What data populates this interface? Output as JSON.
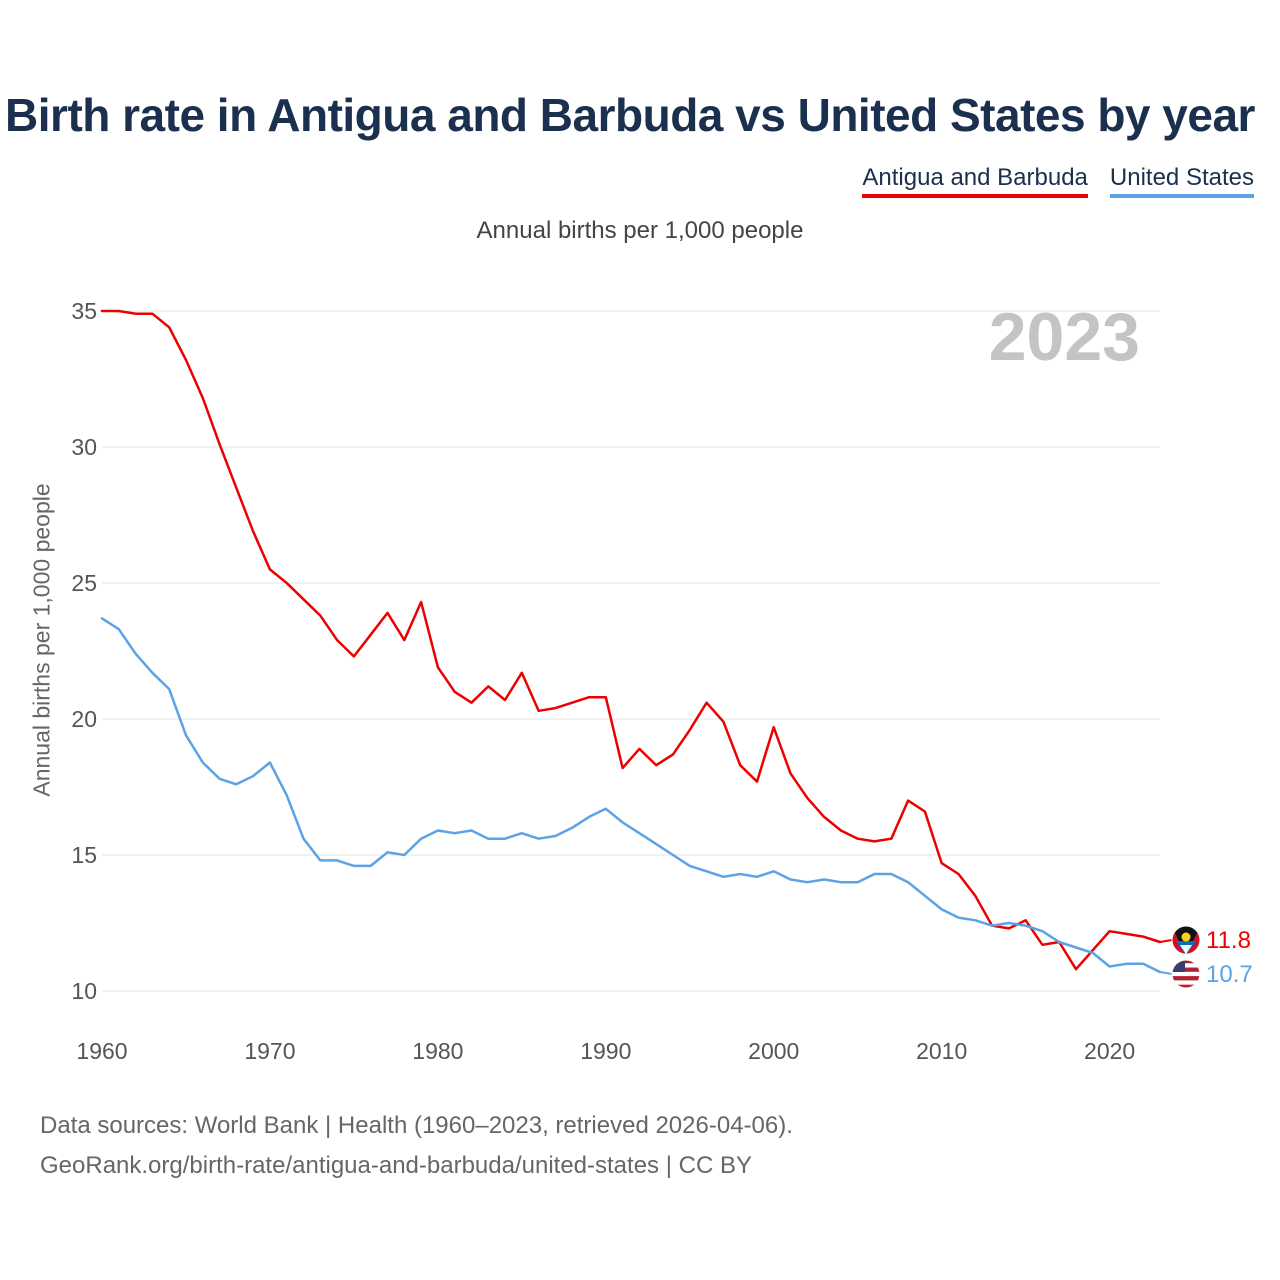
{
  "title": "Birth rate in Antigua and Barbuda vs United States by year",
  "subtitle": "Annual births per 1,000 people",
  "footer": {
    "line1": "Data sources: World Bank | Health (1960–2023, retrieved 2026-04-06).",
    "line2": "GeoRank.org/birth-rate/antigua-and-barbuda/united-states | CC BY"
  },
  "chart_data": {
    "type": "line",
    "title": "Birth rate in Antigua and Barbuda vs United States by year",
    "subtitle": "Annual births per 1,000 people",
    "xlabel": "",
    "ylabel": "Annual births per 1,000 people",
    "xlim": [
      1960,
      2023
    ],
    "ylim": [
      10,
      35
    ],
    "xticks": [
      1960,
      1970,
      1980,
      1990,
      2000,
      2010,
      2020
    ],
    "yticks": [
      10,
      15,
      20,
      25,
      30,
      35
    ],
    "grid": true,
    "legend_position": "top-right",
    "year_label": "2023",
    "x_start": 1960,
    "series": [
      {
        "name": "Antigua and Barbuda",
        "color": "#ee0000",
        "end_label": "11.8",
        "flag": "antigua-and-barbuda-flag",
        "values": [
          35.0,
          35.0,
          34.9,
          34.9,
          34.4,
          33.2,
          31.8,
          30.1,
          28.5,
          26.9,
          25.5,
          25.0,
          24.4,
          23.8,
          22.9,
          22.3,
          23.1,
          23.9,
          22.9,
          24.3,
          21.9,
          21.0,
          20.6,
          21.2,
          20.7,
          21.7,
          20.3,
          20.4,
          20.6,
          20.8,
          20.8,
          18.2,
          18.9,
          18.3,
          18.7,
          19.6,
          20.6,
          19.9,
          18.3,
          17.7,
          19.7,
          18.0,
          17.1,
          16.4,
          15.9,
          15.6,
          15.5,
          15.6,
          17.0,
          16.6,
          14.7,
          14.3,
          13.5,
          12.4,
          12.3,
          12.6,
          11.7,
          11.8,
          10.8,
          11.5,
          12.2,
          12.1,
          12.0,
          11.8
        ]
      },
      {
        "name": "United States",
        "color": "#5ba3e6",
        "end_label": "10.7",
        "flag": "united-states-flag",
        "values": [
          23.7,
          23.3,
          22.4,
          21.7,
          21.1,
          19.4,
          18.4,
          17.8,
          17.6,
          17.9,
          18.4,
          17.2,
          15.6,
          14.8,
          14.8,
          14.6,
          14.6,
          15.1,
          15.0,
          15.6,
          15.9,
          15.8,
          15.9,
          15.6,
          15.6,
          15.8,
          15.6,
          15.7,
          16.0,
          16.4,
          16.7,
          16.2,
          15.8,
          15.4,
          15.0,
          14.6,
          14.4,
          14.2,
          14.3,
          14.2,
          14.4,
          14.1,
          14.0,
          14.1,
          14.0,
          14.0,
          14.3,
          14.3,
          14.0,
          13.5,
          13.0,
          12.7,
          12.6,
          12.4,
          12.5,
          12.4,
          12.2,
          11.8,
          11.6,
          11.4,
          10.9,
          11.0,
          11.0,
          10.7
        ]
      }
    ]
  }
}
